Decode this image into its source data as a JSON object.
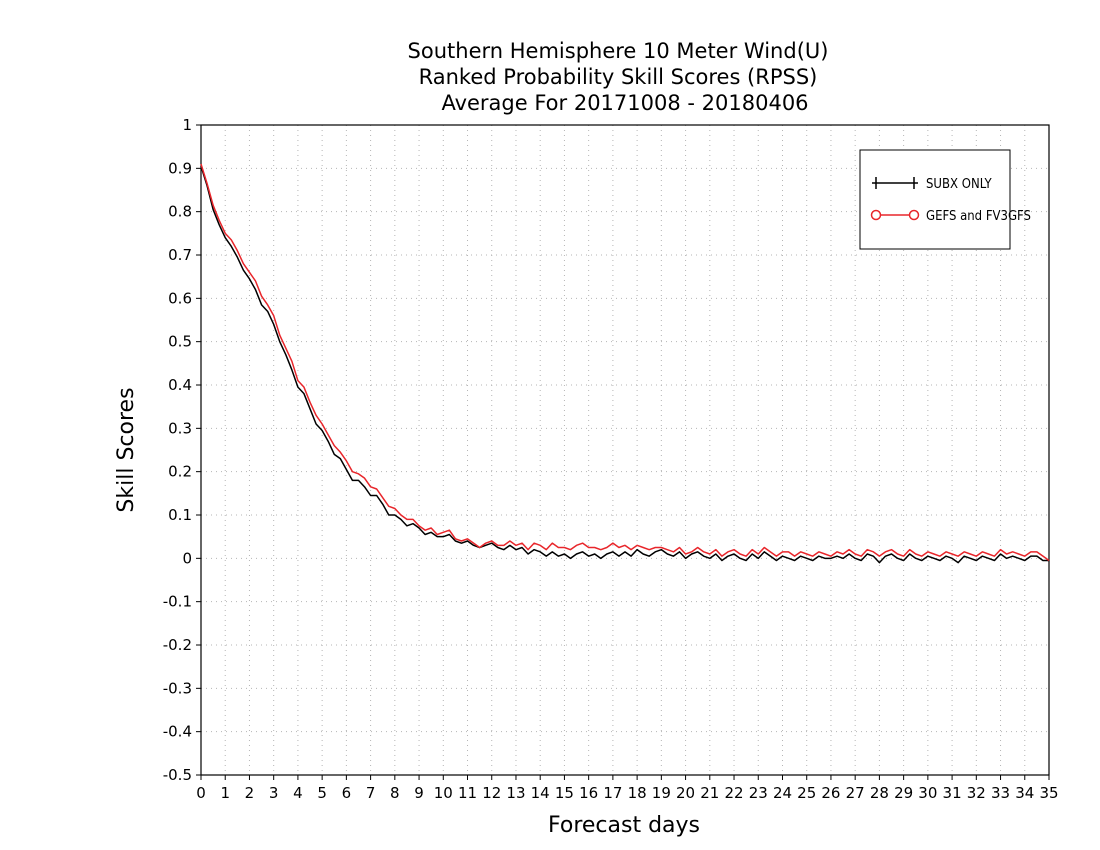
{
  "chart_data": {
    "type": "line",
    "title_lines": [
      "Southern Hemisphere 10 Meter Wind(U)",
      "Ranked Probability Skill Scores (RPSS)",
      "Average For 20171008 - 20180406"
    ],
    "xlabel": "Forecast days",
    "ylabel": "Skill Scores",
    "xlim": [
      0,
      35
    ],
    "ylim": [
      -0.5,
      1
    ],
    "x_ticks": [
      "0",
      "1",
      "2",
      "3",
      "4",
      "5",
      "6",
      "7",
      "8",
      "9",
      "10",
      "11",
      "12",
      "13",
      "14",
      "15",
      "16",
      "17",
      "18",
      "19",
      "20",
      "21",
      "22",
      "23",
      "24",
      "25",
      "26",
      "27",
      "28",
      "29",
      "30",
      "31",
      "32",
      "33",
      "34",
      "35"
    ],
    "y_ticks": [
      "1",
      "0.9",
      "0.8",
      "0.7",
      "0.6",
      "0.5",
      "0.4",
      "0.3",
      "0.2",
      "0.1",
      "0",
      "-0.1",
      "-0.2",
      "-0.3",
      "-0.4",
      "-0.5"
    ],
    "y_tick_values": [
      1,
      0.9,
      0.8,
      0.7,
      0.6,
      0.5,
      0.4,
      0.3,
      0.2,
      0.1,
      0,
      -0.1,
      -0.2,
      -0.3,
      -0.4,
      -0.5
    ],
    "grid": true,
    "legend_position": "top-right",
    "x_step": 0.25,
    "series": [
      {
        "name": "SUBX ONLY",
        "color": "#000000",
        "marker": "plus",
        "values": [
          0.905,
          0.86,
          0.805,
          0.77,
          0.74,
          0.72,
          0.695,
          0.665,
          0.645,
          0.62,
          0.585,
          0.57,
          0.54,
          0.5,
          0.47,
          0.435,
          0.395,
          0.38,
          0.345,
          0.31,
          0.295,
          0.27,
          0.24,
          0.23,
          0.205,
          0.18,
          0.18,
          0.165,
          0.145,
          0.145,
          0.125,
          0.1,
          0.1,
          0.09,
          0.075,
          0.08,
          0.07,
          0.055,
          0.06,
          0.05,
          0.05,
          0.055,
          0.04,
          0.035,
          0.04,
          0.03,
          0.025,
          0.03,
          0.035,
          0.025,
          0.02,
          0.03,
          0.02,
          0.025,
          0.01,
          0.02,
          0.015,
          0.005,
          0.015,
          0.005,
          0.01,
          0.0,
          0.01,
          0.015,
          0.005,
          0.01,
          0.0,
          0.01,
          0.015,
          0.005,
          0.015,
          0.005,
          0.02,
          0.01,
          0.005,
          0.015,
          0.02,
          0.01,
          0.005,
          0.015,
          0.0,
          0.01,
          0.015,
          0.005,
          0.0,
          0.01,
          -0.005,
          0.005,
          0.01,
          0.0,
          -0.005,
          0.01,
          0.0,
          0.015,
          0.005,
          -0.005,
          0.005,
          0.0,
          -0.005,
          0.005,
          0.0,
          -0.005,
          0.005,
          0.0,
          0.0,
          0.005,
          0.0,
          0.01,
          0.0,
          -0.005,
          0.01,
          0.005,
          -0.01,
          0.005,
          0.01,
          0.0,
          -0.005,
          0.01,
          0.0,
          -0.005,
          0.005,
          0.0,
          -0.005,
          0.005,
          0.0,
          -0.01,
          0.005,
          0.0,
          -0.005,
          0.005,
          0.0,
          -0.005,
          0.01,
          0.0,
          0.005,
          0.0,
          -0.005,
          0.005,
          0.005,
          -0.005,
          -0.005
        ]
      },
      {
        "name": "GEFS and FV3GFS",
        "color": "#e8262b",
        "marker": "circle",
        "values": [
          0.91,
          0.865,
          0.815,
          0.78,
          0.75,
          0.735,
          0.71,
          0.68,
          0.66,
          0.64,
          0.605,
          0.585,
          0.56,
          0.515,
          0.485,
          0.455,
          0.41,
          0.395,
          0.36,
          0.33,
          0.31,
          0.285,
          0.26,
          0.245,
          0.225,
          0.2,
          0.195,
          0.185,
          0.165,
          0.16,
          0.14,
          0.12,
          0.115,
          0.1,
          0.09,
          0.09,
          0.075,
          0.065,
          0.07,
          0.055,
          0.06,
          0.065,
          0.045,
          0.04,
          0.045,
          0.035,
          0.025,
          0.035,
          0.04,
          0.03,
          0.03,
          0.04,
          0.03,
          0.035,
          0.02,
          0.035,
          0.03,
          0.02,
          0.035,
          0.025,
          0.025,
          0.02,
          0.03,
          0.035,
          0.025,
          0.025,
          0.02,
          0.025,
          0.035,
          0.025,
          0.03,
          0.02,
          0.03,
          0.025,
          0.02,
          0.025,
          0.025,
          0.02,
          0.015,
          0.025,
          0.01,
          0.015,
          0.025,
          0.015,
          0.01,
          0.02,
          0.005,
          0.015,
          0.02,
          0.01,
          0.005,
          0.02,
          0.01,
          0.025,
          0.015,
          0.005,
          0.015,
          0.015,
          0.005,
          0.015,
          0.01,
          0.005,
          0.015,
          0.01,
          0.005,
          0.015,
          0.01,
          0.02,
          0.01,
          0.005,
          0.02,
          0.015,
          0.005,
          0.015,
          0.02,
          0.01,
          0.005,
          0.02,
          0.01,
          0.005,
          0.015,
          0.01,
          0.005,
          0.015,
          0.01,
          0.005,
          0.015,
          0.01,
          0.005,
          0.015,
          0.01,
          0.005,
          0.02,
          0.01,
          0.015,
          0.01,
          0.005,
          0.015,
          0.015,
          0.005,
          -0.005
        ]
      }
    ]
  }
}
